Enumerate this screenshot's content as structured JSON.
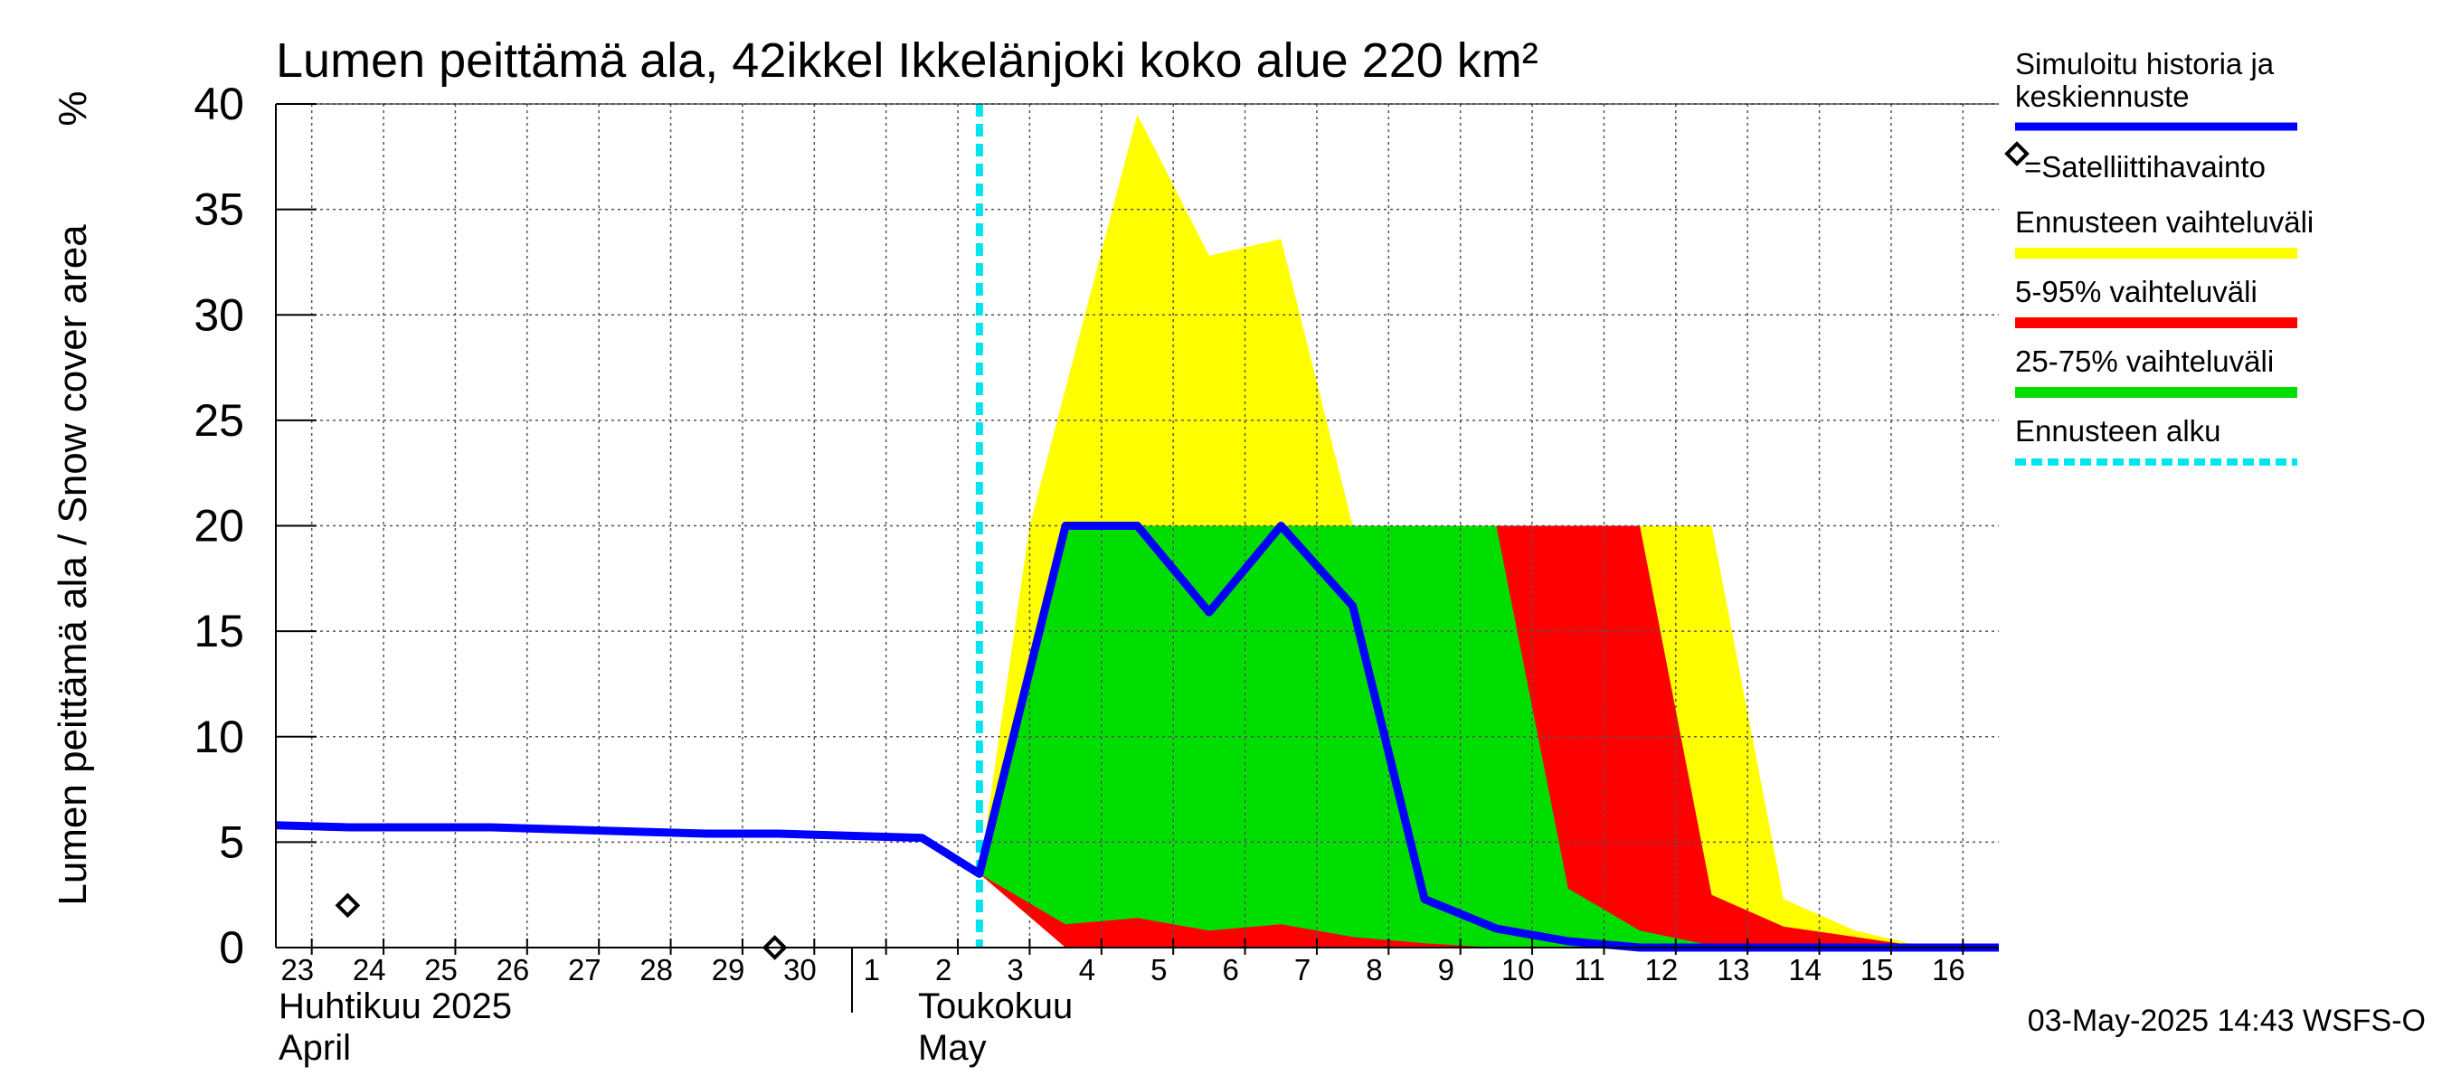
{
  "chart_data": {
    "type": "area",
    "title": "Lumen peittämä ala, 42ikkel Ikkelänjoki koko alue 220 km²",
    "ylabel": "Lumen peittämä ala / Snow cover area",
    "yunit": "%",
    "ylim": [
      0,
      40
    ],
    "yticks": [
      0,
      5,
      10,
      15,
      20,
      25,
      30,
      35,
      40
    ],
    "xlim": [
      23,
      47
    ],
    "day_labels": [
      {
        "x": 23,
        "label": "23"
      },
      {
        "x": 24,
        "label": "24"
      },
      {
        "x": 25,
        "label": "25"
      },
      {
        "x": 26,
        "label": "26"
      },
      {
        "x": 27,
        "label": "27"
      },
      {
        "x": 28,
        "label": "28"
      },
      {
        "x": 29,
        "label": "29"
      },
      {
        "x": 30,
        "label": "30"
      },
      {
        "x": 31,
        "label": "1"
      },
      {
        "x": 32,
        "label": "2"
      },
      {
        "x": 33,
        "label": "3"
      },
      {
        "x": 34,
        "label": "4"
      },
      {
        "x": 35,
        "label": "5"
      },
      {
        "x": 36,
        "label": "6"
      },
      {
        "x": 37,
        "label": "7"
      },
      {
        "x": 38,
        "label": "8"
      },
      {
        "x": 39,
        "label": "9"
      },
      {
        "x": 40,
        "label": "10"
      },
      {
        "x": 41,
        "label": "11"
      },
      {
        "x": 42,
        "label": "12"
      },
      {
        "x": 43,
        "label": "13"
      },
      {
        "x": 44,
        "label": "14"
      },
      {
        "x": 45,
        "label": "15"
      },
      {
        "x": 46,
        "label": "16"
      }
    ],
    "months": [
      {
        "x": 23,
        "fi": "Huhtikuu  2025",
        "en": "April"
      },
      {
        "x": 31,
        "fi": "Toukokuu",
        "en": "May"
      }
    ],
    "forecast_start": 32.8,
    "series": [
      {
        "name": "Ennusteen vaihteluväli",
        "color": "#ffff00",
        "x": [
          32.8,
          33.5,
          34.0,
          35.0,
          36.0,
          37.0,
          38.0,
          39.0,
          40.0,
          41.0,
          42.0,
          43.0,
          44.0,
          45.0,
          46.0,
          47.0
        ],
        "upper": [
          3.5,
          20.0,
          26.5,
          39.5,
          32.8,
          33.6,
          20.0,
          20.0,
          20.0,
          20.0,
          20.0,
          20.0,
          2.3,
          0.8,
          0.0,
          0.0
        ],
        "lower": [
          3.5,
          1.5,
          0.0,
          0.0,
          0.0,
          0.0,
          0.0,
          0.0,
          0.0,
          0.0,
          0.0,
          0.0,
          0.0,
          0.0,
          0.0,
          0.0
        ]
      },
      {
        "name": "5-95% vaihteluväli",
        "color": "#ff0000",
        "x": [
          32.8,
          34.0,
          35.0,
          36.0,
          37.0,
          38.0,
          39.0,
          40.0,
          41.0,
          42.0,
          43.0,
          44.0,
          45.0,
          46.0,
          47.0
        ],
        "upper": [
          3.5,
          20.0,
          20.0,
          20.0,
          20.0,
          20.0,
          20.0,
          20.0,
          20.0,
          20.0,
          2.5,
          1.0,
          0.5,
          0.0,
          0.0
        ],
        "lower": [
          3.5,
          0.0,
          0.0,
          0.0,
          0.0,
          0.0,
          0.0,
          0.0,
          0.0,
          0.0,
          0.0,
          0.0,
          0.0,
          0.0,
          0.0
        ]
      },
      {
        "name": "25-75% vaihteluväli",
        "color": "#00dd00",
        "x": [
          32.8,
          34.0,
          35.0,
          36.0,
          37.0,
          38.0,
          39.0,
          40.0,
          41.0,
          42.0,
          43.0,
          44.0,
          47.0
        ],
        "upper": [
          3.5,
          20.0,
          20.0,
          20.0,
          20.0,
          20.0,
          20.0,
          20.0,
          2.8,
          0.8,
          0.1,
          0.0,
          0.0
        ],
        "lower": [
          3.5,
          1.1,
          1.4,
          0.8,
          1.1,
          0.5,
          0.2,
          0.0,
          0.0,
          0.0,
          0.0,
          0.0,
          0.0
        ]
      },
      {
        "name": "Simuloitu historia ja keskiennuste",
        "color": "#0000ff",
        "x": [
          23.0,
          24.0,
          25.0,
          26.0,
          27.0,
          28.0,
          29.0,
          30.0,
          31.0,
          32.0,
          32.8,
          34.0,
          35.0,
          36.0,
          37.0,
          38.0,
          39.0,
          40.0,
          41.0,
          42.0,
          43.0,
          44.0,
          45.0,
          46.0,
          47.0
        ],
        "y": [
          5.8,
          5.7,
          5.7,
          5.7,
          5.6,
          5.5,
          5.4,
          5.4,
          5.3,
          5.2,
          3.5,
          20.0,
          20.0,
          15.9,
          20.0,
          16.2,
          2.3,
          0.9,
          0.3,
          0.0,
          0.0,
          0.0,
          0.0,
          0.0,
          0.0
        ]
      }
    ],
    "observations": {
      "name": "=Satelliittihavainto",
      "points": [
        {
          "x": 24.0,
          "y": 2.0
        },
        {
          "x": 29.95,
          "y": 0.0
        }
      ]
    },
    "legend": {
      "placement": "right",
      "items": [
        {
          "label": "Simuloitu historia ja keskiennuste",
          "color": "#0000ff",
          "style": "line"
        },
        {
          "label": "=Satelliittihavainto",
          "color": "#000000",
          "style": "marker"
        },
        {
          "label": "Ennusteen vaihteluväli",
          "color": "#ffff00",
          "style": "band"
        },
        {
          "label": "5-95% vaihteluväli",
          "color": "#ff0000",
          "style": "band"
        },
        {
          "label": "25-75% vaihteluväli",
          "color": "#00dd00",
          "style": "band"
        },
        {
          "label": "Ennusteen alku",
          "color": "#00e5ee",
          "style": "dashed"
        }
      ]
    },
    "footer": "03-May-2025 14:43 WSFS-O"
  }
}
